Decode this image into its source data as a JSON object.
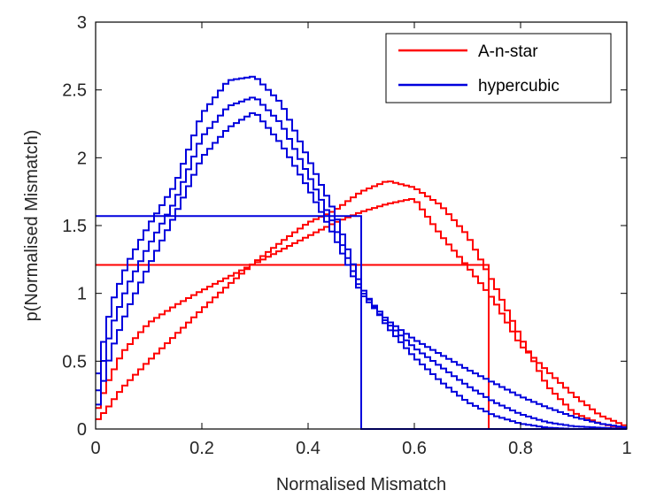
{
  "chart_data": {
    "type": "line",
    "step": true,
    "xlabel": "Normalised Mismatch",
    "ylabel": "p(Normalised Mismatch)",
    "xlim": [
      0,
      1
    ],
    "ylim": [
      0,
      3
    ],
    "xticks": [
      0,
      0.2,
      0.4,
      0.6,
      0.8,
      1
    ],
    "xtick_labels": [
      "0",
      "0.2",
      "0.4",
      "0.6",
      "0.8",
      "1"
    ],
    "yticks": [
      0,
      0.5,
      1,
      1.5,
      2,
      2.5,
      3
    ],
    "ytick_labels": [
      "0",
      "0.5",
      "1",
      "1.5",
      "2",
      "2.5",
      "3"
    ],
    "grid": false,
    "legend_position": "top-right",
    "legend": [
      {
        "label": "A-n-star",
        "color": "#ff0000"
      },
      {
        "label": "hypercubic",
        "color": "#0000dd"
      }
    ],
    "series": [
      {
        "name": "A-n-star",
        "color": "#ff0000",
        "x": [
          0,
          0.74,
          0.75,
          1
        ],
        "y": [
          1.21,
          1.21,
          0,
          0
        ]
      },
      {
        "name": "A-n-star",
        "color": "#ff0000",
        "x": [
          0,
          0.02,
          0.05,
          0.1,
          0.15,
          0.2,
          0.25,
          0.3,
          0.35,
          0.4,
          0.45,
          0.5,
          0.55,
          0.6,
          0.65,
          0.7,
          0.75,
          0.8,
          0.85,
          0.9,
          0.95,
          1.0
        ],
        "y": [
          0.05,
          0.14,
          0.3,
          0.5,
          0.69,
          0.88,
          1.06,
          1.23,
          1.38,
          1.52,
          1.61,
          1.75,
          1.83,
          1.78,
          1.65,
          1.43,
          1.07,
          0.68,
          0.32,
          0.12,
          0.04,
          0.0
        ]
      },
      {
        "name": "A-n-star",
        "color": "#ff0000",
        "x": [
          0,
          0.02,
          0.05,
          0.1,
          0.15,
          0.2,
          0.25,
          0.3,
          0.35,
          0.4,
          0.45,
          0.5,
          0.55,
          0.6,
          0.65,
          0.7,
          0.75,
          0.8,
          0.85,
          0.9,
          0.95,
          1.0
        ],
        "y": [
          0.1,
          0.32,
          0.56,
          0.78,
          0.91,
          1.02,
          1.12,
          1.22,
          1.32,
          1.42,
          1.52,
          1.6,
          1.66,
          1.7,
          1.43,
          1.2,
          0.95,
          0.62,
          0.43,
          0.25,
          0.1,
          0.02
        ]
      },
      {
        "name": "hypercubic",
        "color": "#0000dd",
        "x": [
          0,
          0.5,
          0.505,
          1
        ],
        "y": [
          1.57,
          1.57,
          0,
          0
        ]
      },
      {
        "name": "hypercubic",
        "color": "#0000dd",
        "x": [
          0,
          0.01,
          0.03,
          0.06,
          0.1,
          0.15,
          0.2,
          0.25,
          0.3,
          0.35,
          0.4,
          0.45,
          0.5,
          0.55,
          0.6,
          0.65,
          0.7,
          0.75,
          0.8,
          0.85,
          0.9,
          0.95,
          1.0
        ],
        "y": [
          0.27,
          0.55,
          0.92,
          1.22,
          1.5,
          1.8,
          2.32,
          2.57,
          2.6,
          2.4,
          2.0,
          1.6,
          1.05,
          0.75,
          0.53,
          0.35,
          0.2,
          0.1,
          0.04,
          0.01,
          0.0,
          0.0,
          0.0
        ]
      },
      {
        "name": "hypercubic",
        "color": "#0000dd",
        "x": [
          0,
          0.01,
          0.03,
          0.06,
          0.1,
          0.15,
          0.2,
          0.25,
          0.3,
          0.35,
          0.4,
          0.45,
          0.5,
          0.55,
          0.6,
          0.65,
          0.7,
          0.75,
          0.8,
          0.85,
          0.9,
          0.95,
          1.0
        ],
        "y": [
          0.08,
          0.28,
          0.58,
          0.88,
          1.2,
          1.58,
          2.0,
          2.22,
          2.34,
          2.1,
          1.78,
          1.42,
          1.0,
          0.78,
          0.6,
          0.46,
          0.32,
          0.2,
          0.11,
          0.05,
          0.02,
          0.01,
          0.0
        ]
      },
      {
        "name": "hypercubic",
        "color": "#0000dd",
        "x": [
          0,
          0.01,
          0.03,
          0.06,
          0.1,
          0.15,
          0.2,
          0.25,
          0.3,
          0.35,
          0.4,
          0.45,
          0.5,
          0.55,
          0.6,
          0.65,
          0.7,
          0.75,
          0.8,
          0.85,
          0.9,
          0.95,
          1.0
        ],
        "y": [
          0.15,
          0.42,
          0.75,
          1.05,
          1.35,
          1.68,
          2.15,
          2.38,
          2.45,
          2.25,
          1.88,
          1.5,
          1.02,
          0.8,
          0.66,
          0.55,
          0.44,
          0.34,
          0.24,
          0.16,
          0.09,
          0.04,
          0.01
        ]
      }
    ]
  }
}
